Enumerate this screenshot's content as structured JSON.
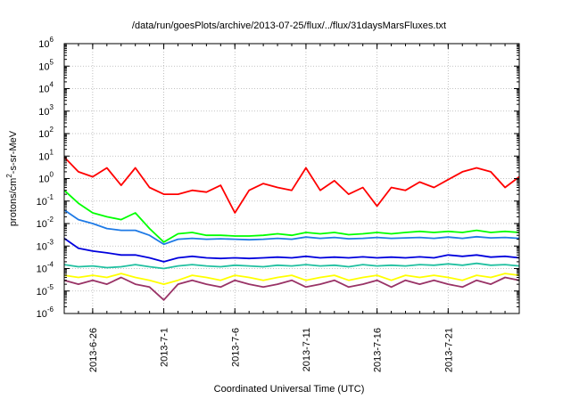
{
  "chart_data": {
    "type": "line",
    "title": "/data/run/goesPlots/archive/2013-07-25/flux/../flux/31daysMarsFluxes.txt",
    "xlabel": "Coordinated Universal Time (UTC)",
    "ylabel_parts": [
      "protons/cm",
      "2",
      "-s-sr-MeV"
    ],
    "yscale": "log",
    "ylim_exponents": [
      -6,
      6
    ],
    "y_ticks": [
      {
        "base": "10",
        "exp": "6"
      },
      {
        "base": "10",
        "exp": "5"
      },
      {
        "base": "10",
        "exp": "4"
      },
      {
        "base": "10",
        "exp": "3"
      },
      {
        "base": "10",
        "exp": "2"
      },
      {
        "base": "10",
        "exp": "1"
      },
      {
        "base": "10",
        "exp": "0"
      },
      {
        "base": "10",
        "exp": "-1"
      },
      {
        "base": "10",
        "exp": "-2"
      },
      {
        "base": "10",
        "exp": "-3"
      },
      {
        "base": "10",
        "exp": "-4"
      },
      {
        "base": "10",
        "exp": "-5"
      },
      {
        "base": "10",
        "exp": "-6"
      }
    ],
    "xlim": [
      "2013-06-24",
      "2013-07-26"
    ],
    "x_ticks": [
      "2013-6-26",
      "2013-7-1",
      "2013-7-6",
      "2013-7-11",
      "2013-7-16",
      "2013-7-21"
    ],
    "grid": true,
    "legend": "none",
    "series": [
      {
        "color": "#ff0000",
        "x": [
          "2013-06-24",
          "2013-06-25",
          "2013-06-26",
          "2013-06-27",
          "2013-06-28",
          "2013-06-29",
          "2013-06-30",
          "2013-07-01",
          "2013-07-02",
          "2013-07-03",
          "2013-07-04",
          "2013-07-05",
          "2013-07-06",
          "2013-07-07",
          "2013-07-08",
          "2013-07-09",
          "2013-07-10",
          "2013-07-11",
          "2013-07-12",
          "2013-07-13",
          "2013-07-14",
          "2013-07-15",
          "2013-07-16",
          "2013-07-17",
          "2013-07-18",
          "2013-07-19",
          "2013-07-20",
          "2013-07-21",
          "2013-07-22",
          "2013-07-23",
          "2013-07-24",
          "2013-07-25",
          "2013-07-26"
        ],
        "y": [
          9,
          2,
          1.2,
          3,
          0.5,
          3,
          0.4,
          0.2,
          0.2,
          0.3,
          0.25,
          0.5,
          0.03,
          0.3,
          0.6,
          0.4,
          0.3,
          3,
          0.3,
          0.8,
          0.2,
          0.4,
          0.06,
          0.4,
          0.3,
          0.7,
          0.4,
          0.9,
          2,
          3,
          2,
          0.4,
          1.2
        ]
      },
      {
        "color": "#00ff00",
        "x": [
          "2013-06-24",
          "2013-06-25",
          "2013-06-26",
          "2013-06-27",
          "2013-06-28",
          "2013-06-29",
          "2013-06-30",
          "2013-07-01",
          "2013-07-02",
          "2013-07-03",
          "2013-07-04",
          "2013-07-05",
          "2013-07-06",
          "2013-07-07",
          "2013-07-08",
          "2013-07-09",
          "2013-07-10",
          "2013-07-11",
          "2013-07-12",
          "2013-07-13",
          "2013-07-14",
          "2013-07-15",
          "2013-07-16",
          "2013-07-17",
          "2013-07-18",
          "2013-07-19",
          "2013-07-20",
          "2013-07-21",
          "2013-07-22",
          "2013-07-23",
          "2013-07-24",
          "2013-07-25",
          "2013-07-26"
        ],
        "y": [
          0.3,
          0.08,
          0.03,
          0.02,
          0.015,
          0.03,
          0.006,
          0.0015,
          0.0035,
          0.004,
          0.003,
          0.003,
          0.0028,
          0.0028,
          0.003,
          0.0035,
          0.003,
          0.004,
          0.0035,
          0.004,
          0.0032,
          0.0035,
          0.004,
          0.0035,
          0.004,
          0.0045,
          0.004,
          0.0045,
          0.004,
          0.005,
          0.004,
          0.0045,
          0.004
        ]
      },
      {
        "color": "#1e7ae6",
        "x": [
          "2013-06-24",
          "2013-06-25",
          "2013-06-26",
          "2013-06-27",
          "2013-06-28",
          "2013-06-29",
          "2013-06-30",
          "2013-07-01",
          "2013-07-02",
          "2013-07-03",
          "2013-07-04",
          "2013-07-05",
          "2013-07-06",
          "2013-07-07",
          "2013-07-08",
          "2013-07-09",
          "2013-07-10",
          "2013-07-11",
          "2013-07-12",
          "2013-07-13",
          "2013-07-14",
          "2013-07-15",
          "2013-07-16",
          "2013-07-17",
          "2013-07-18",
          "2013-07-19",
          "2013-07-20",
          "2013-07-21",
          "2013-07-22",
          "2013-07-23",
          "2013-07-24",
          "2013-07-25",
          "2013-07-26"
        ],
        "y": [
          0.04,
          0.015,
          0.01,
          0.006,
          0.005,
          0.005,
          0.003,
          0.0012,
          0.002,
          0.0022,
          0.002,
          0.0021,
          0.002,
          0.0019,
          0.002,
          0.0022,
          0.002,
          0.0025,
          0.0022,
          0.0024,
          0.0021,
          0.0022,
          0.0024,
          0.0022,
          0.0023,
          0.0024,
          0.0022,
          0.0025,
          0.0022,
          0.0026,
          0.0023,
          0.0024,
          0.0022
        ]
      },
      {
        "color": "#0000dd",
        "x": [
          "2013-06-24",
          "2013-06-25",
          "2013-06-26",
          "2013-06-27",
          "2013-06-28",
          "2013-06-29",
          "2013-06-30",
          "2013-07-01",
          "2013-07-02",
          "2013-07-03",
          "2013-07-04",
          "2013-07-05",
          "2013-07-06",
          "2013-07-07",
          "2013-07-08",
          "2013-07-09",
          "2013-07-10",
          "2013-07-11",
          "2013-07-12",
          "2013-07-13",
          "2013-07-14",
          "2013-07-15",
          "2013-07-16",
          "2013-07-17",
          "2013-07-18",
          "2013-07-19",
          "2013-07-20",
          "2013-07-21",
          "2013-07-22",
          "2013-07-23",
          "2013-07-24",
          "2013-07-25",
          "2013-07-26"
        ],
        "y": [
          0.0022,
          0.0008,
          0.0006,
          0.0005,
          0.0004,
          0.0004,
          0.0003,
          0.0002,
          0.0003,
          0.00035,
          0.0003,
          0.00028,
          0.0003,
          0.00028,
          0.0003,
          0.00032,
          0.0003,
          0.00035,
          0.0003,
          0.00032,
          0.0003,
          0.00033,
          0.0003,
          0.00032,
          0.0003,
          0.00033,
          0.0003,
          0.0004,
          0.00035,
          0.0004,
          0.00032,
          0.00035,
          0.0003
        ]
      },
      {
        "color": "#20c0a0",
        "x": [
          "2013-06-24",
          "2013-06-25",
          "2013-06-26",
          "2013-06-27",
          "2013-06-28",
          "2013-06-29",
          "2013-06-30",
          "2013-07-01",
          "2013-07-02",
          "2013-07-03",
          "2013-07-04",
          "2013-07-05",
          "2013-07-06",
          "2013-07-07",
          "2013-07-08",
          "2013-07-09",
          "2013-07-10",
          "2013-07-11",
          "2013-07-12",
          "2013-07-13",
          "2013-07-14",
          "2013-07-15",
          "2013-07-16",
          "2013-07-17",
          "2013-07-18",
          "2013-07-19",
          "2013-07-20",
          "2013-07-21",
          "2013-07-22",
          "2013-07-23",
          "2013-07-24",
          "2013-07-25",
          "2013-07-26"
        ],
        "y": [
          0.00015,
          0.00012,
          0.00013,
          0.00011,
          0.00012,
          0.00015,
          0.00012,
          0.0001,
          0.00013,
          0.00015,
          0.00013,
          0.00012,
          0.00014,
          0.00013,
          0.00012,
          0.00014,
          0.00013,
          0.00015,
          0.00013,
          0.00014,
          0.00012,
          0.00015,
          0.00013,
          0.00014,
          0.00013,
          0.00015,
          0.00014,
          0.00016,
          0.00014,
          0.00017,
          0.00014,
          0.00015,
          0.00013
        ]
      },
      {
        "color": "#ffff00",
        "x": [
          "2013-06-24",
          "2013-06-25",
          "2013-06-26",
          "2013-06-27",
          "2013-06-28",
          "2013-06-29",
          "2013-06-30",
          "2013-07-01",
          "2013-07-02",
          "2013-07-03",
          "2013-07-04",
          "2013-07-05",
          "2013-07-06",
          "2013-07-07",
          "2013-07-08",
          "2013-07-09",
          "2013-07-10",
          "2013-07-11",
          "2013-07-12",
          "2013-07-13",
          "2013-07-14",
          "2013-07-15",
          "2013-07-16",
          "2013-07-17",
          "2013-07-18",
          "2013-07-19",
          "2013-07-20",
          "2013-07-21",
          "2013-07-22",
          "2013-07-23",
          "2013-07-24",
          "2013-07-25",
          "2013-07-26"
        ],
        "y": [
          5e-05,
          4e-05,
          5e-05,
          4e-05,
          6e-05,
          4e-05,
          3e-05,
          2e-05,
          3e-05,
          5e-05,
          4e-05,
          3e-05,
          5e-05,
          4e-05,
          3e-05,
          4e-05,
          5e-05,
          3e-05,
          4e-05,
          5e-05,
          3e-05,
          4e-05,
          5e-05,
          3e-05,
          5e-05,
          4e-05,
          5e-05,
          4e-05,
          3e-05,
          5e-05,
          4e-05,
          6e-05,
          5e-05
        ]
      },
      {
        "color": "#993366",
        "x": [
          "2013-06-24",
          "2013-06-25",
          "2013-06-26",
          "2013-06-27",
          "2013-06-28",
          "2013-06-29",
          "2013-06-30",
          "2013-07-01",
          "2013-07-02",
          "2013-07-03",
          "2013-07-04",
          "2013-07-05",
          "2013-07-06",
          "2013-07-07",
          "2013-07-08",
          "2013-07-09",
          "2013-07-10",
          "2013-07-11",
          "2013-07-12",
          "2013-07-13",
          "2013-07-14",
          "2013-07-15",
          "2013-07-16",
          "2013-07-17",
          "2013-07-18",
          "2013-07-19",
          "2013-07-20",
          "2013-07-21",
          "2013-07-22",
          "2013-07-23",
          "2013-07-24",
          "2013-07-25",
          "2013-07-26"
        ],
        "y": [
          3e-05,
          2e-05,
          3e-05,
          2e-05,
          4e-05,
          2e-05,
          1.5e-05,
          4e-06,
          2e-05,
          3e-05,
          2e-05,
          1.5e-05,
          3e-05,
          2e-05,
          1.5e-05,
          2e-05,
          3e-05,
          1.5e-05,
          2e-05,
          3e-05,
          1.5e-05,
          2e-05,
          3e-05,
          1.5e-05,
          3e-05,
          2e-05,
          3e-05,
          2e-05,
          1.5e-05,
          3e-05,
          2e-05,
          4e-05,
          3e-05
        ]
      }
    ]
  }
}
